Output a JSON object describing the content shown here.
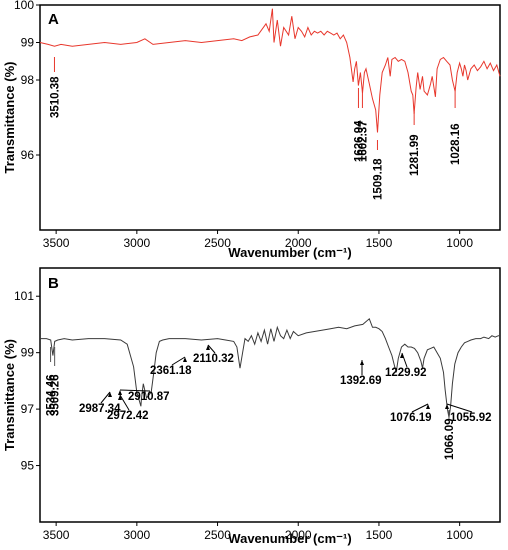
{
  "chart_data": [
    {
      "panel": "A",
      "type": "line",
      "title": "",
      "xlabel": "Wavenumber (cm⁻¹)",
      "ylabel": "Transmittance (%)",
      "xlim": [
        3600,
        750
      ],
      "ylim": [
        94,
        100
      ],
      "xticks": [
        3500,
        3000,
        2500,
        2000,
        1500,
        1000
      ],
      "yticks": [
        96,
        98,
        99,
        100
      ],
      "grid": false,
      "color": "#e8372c",
      "series": [
        {
          "x": [
            3600,
            3550,
            3510,
            3470,
            3400,
            3300,
            3200,
            3100,
            3000,
            2950,
            2900,
            2800,
            2700,
            2600,
            2500,
            2400,
            2350,
            2300,
            2250,
            2200,
            2180,
            2160,
            2150,
            2130,
            2110,
            2090,
            2060,
            2040,
            2020,
            2000,
            1980,
            1960,
            1940,
            1920,
            1900,
            1880,
            1860,
            1840,
            1820,
            1800,
            1780,
            1760,
            1740,
            1720,
            1700,
            1680,
            1660,
            1650,
            1640,
            1627,
            1615,
            1602,
            1590,
            1580,
            1560,
            1540,
            1520,
            1509,
            1495,
            1480,
            1460,
            1445,
            1430,
            1420,
            1400,
            1380,
            1360,
            1340,
            1320,
            1300,
            1290,
            1282,
            1270,
            1260,
            1245,
            1230,
            1220,
            1200,
            1180,
            1170,
            1150,
            1140,
            1120,
            1100,
            1080,
            1060,
            1045,
            1028,
            1015,
            1000,
            990,
            980,
            970,
            960,
            950,
            930,
            910,
            890,
            870,
            850,
            830,
            810,
            790,
            770,
            750
          ],
          "y": [
            99.0,
            98.95,
            98.9,
            98.95,
            98.9,
            98.95,
            99.0,
            98.95,
            99.0,
            99.1,
            98.95,
            99.0,
            99.05,
            99.0,
            99.05,
            99.1,
            99.05,
            99.15,
            99.2,
            99.5,
            99.3,
            99.9,
            99.0,
            99.6,
            98.9,
            99.4,
            99.2,
            99.7,
            99.1,
            99.4,
            99.3,
            99.15,
            99.4,
            99.2,
            99.3,
            99.25,
            99.3,
            99.2,
            99.3,
            99.25,
            99.2,
            99.25,
            99.1,
            99.2,
            99.0,
            98.6,
            97.95,
            98.3,
            98.5,
            97.85,
            98.2,
            97.65,
            98.2,
            98.3,
            97.9,
            97.5,
            97.2,
            96.6,
            97.6,
            98.2,
            98.4,
            98.6,
            98.1,
            98.55,
            98.6,
            98.5,
            98.55,
            98.5,
            98.2,
            97.7,
            97.6,
            97.1,
            97.8,
            98.2,
            97.75,
            98.1,
            97.7,
            97.6,
            97.9,
            98.1,
            97.55,
            98.3,
            98.55,
            98.6,
            98.5,
            98.4,
            98.0,
            97.7,
            98.2,
            98.45,
            98.3,
            98.1,
            98.4,
            98.25,
            98.0,
            98.3,
            98.4,
            98.25,
            98.35,
            98.5,
            98.3,
            98.45,
            98.25,
            98.4,
            98.1
          ]
        }
      ],
      "peak_labels": [
        {
          "text": "3510.38",
          "x": 3510.38
        },
        {
          "text": "1626.94",
          "x": 1626.94
        },
        {
          "text": "1602.37",
          "x": 1602.37
        },
        {
          "text": "1509.18",
          "x": 1509.18
        },
        {
          "text": "1281.99",
          "x": 1281.99
        },
        {
          "text": "1028.16",
          "x": 1028.16
        }
      ]
    },
    {
      "panel": "B",
      "type": "line",
      "title": "",
      "xlabel": "Wavenumber (cm⁻¹)",
      "ylabel": "Transmittance (%)",
      "xlim": [
        3600,
        750
      ],
      "ylim": [
        93,
        102
      ],
      "xticks": [
        3500,
        3000,
        2500,
        2000,
        1500,
        1000
      ],
      "yticks": [
        95,
        97,
        99,
        101
      ],
      "grid": false,
      "color": "#3a3a3a",
      "series": [
        {
          "x": [
            3600,
            3560,
            3534,
            3520,
            3509,
            3490,
            3450,
            3400,
            3300,
            3200,
            3100,
            3060,
            3020,
            3000,
            2987,
            2975,
            2972,
            2960,
            2940,
            2925,
            2911,
            2895,
            2880,
            2860,
            2840,
            2800,
            2700,
            2600,
            2500,
            2450,
            2400,
            2380,
            2361,
            2345,
            2330,
            2310,
            2290,
            2270,
            2250,
            2230,
            2210,
            2190,
            2170,
            2150,
            2130,
            2110,
            2090,
            2070,
            2050,
            2030,
            2000,
            1950,
            1900,
            1850,
            1800,
            1750,
            1700,
            1650,
            1600,
            1560,
            1540,
            1520,
            1500,
            1480,
            1460,
            1440,
            1420,
            1400,
            1393,
            1380,
            1360,
            1340,
            1320,
            1300,
            1280,
            1260,
            1240,
            1230,
            1220,
            1200,
            1180,
            1160,
            1140,
            1120,
            1100,
            1090,
            1076,
            1066,
            1056,
            1045,
            1030,
            1010,
            990,
            970,
            950,
            930,
            900,
            870,
            850,
            820,
            800,
            780,
            760,
            750
          ],
          "y": [
            99.5,
            99.5,
            99.45,
            98.9,
            99.4,
            99.45,
            99.5,
            99.45,
            99.5,
            99.5,
            99.45,
            99.3,
            98.5,
            97.6,
            97.35,
            97.1,
            97.35,
            97.9,
            97.4,
            97.5,
            97.6,
            98.3,
            99.0,
            99.4,
            99.45,
            99.5,
            99.5,
            99.45,
            99.5,
            99.45,
            99.4,
            99.2,
            98.45,
            99.0,
            99.5,
            99.4,
            99.6,
            99.3,
            99.7,
            99.4,
            99.8,
            99.3,
            99.85,
            99.4,
            99.9,
            99.6,
            99.5,
            99.8,
            99.5,
            99.75,
            99.6,
            99.7,
            99.75,
            99.8,
            99.85,
            99.9,
            99.85,
            99.95,
            100.0,
            100.2,
            99.9,
            99.9,
            99.85,
            99.75,
            99.5,
            99.2,
            98.9,
            98.45,
            98.3,
            98.8,
            99.2,
            99.3,
            99.2,
            99.2,
            99.15,
            99.0,
            98.7,
            98.45,
            98.8,
            99.1,
            99.15,
            99.2,
            99.0,
            98.8,
            98.3,
            97.7,
            97.0,
            96.7,
            97.1,
            97.9,
            98.6,
            99.0,
            99.2,
            99.35,
            99.4,
            99.45,
            99.5,
            99.5,
            99.55,
            99.5,
            99.6,
            99.55,
            99.6,
            99.6
          ]
        }
      ],
      "peak_labels": [
        {
          "text": "3534.46",
          "x": 3534.46
        },
        {
          "text": "3509.26",
          "x": 3509.26
        },
        {
          "text": "2987.34",
          "x": 2987.34
        },
        {
          "text": "2972.42",
          "x": 2972.42
        },
        {
          "text": "2910.87",
          "x": 2910.87
        },
        {
          "text": "2361.18",
          "x": 2361.18
        },
        {
          "text": "2110.32",
          "x": 2110.32
        },
        {
          "text": "1392.69",
          "x": 1392.69
        },
        {
          "text": "1229.92",
          "x": 1229.92
        },
        {
          "text": "1076.19",
          "x": 1076.19
        },
        {
          "text": "1066.09",
          "x": 1066.09
        },
        {
          "text": "1055.92",
          "x": 1055.92
        }
      ]
    }
  ]
}
